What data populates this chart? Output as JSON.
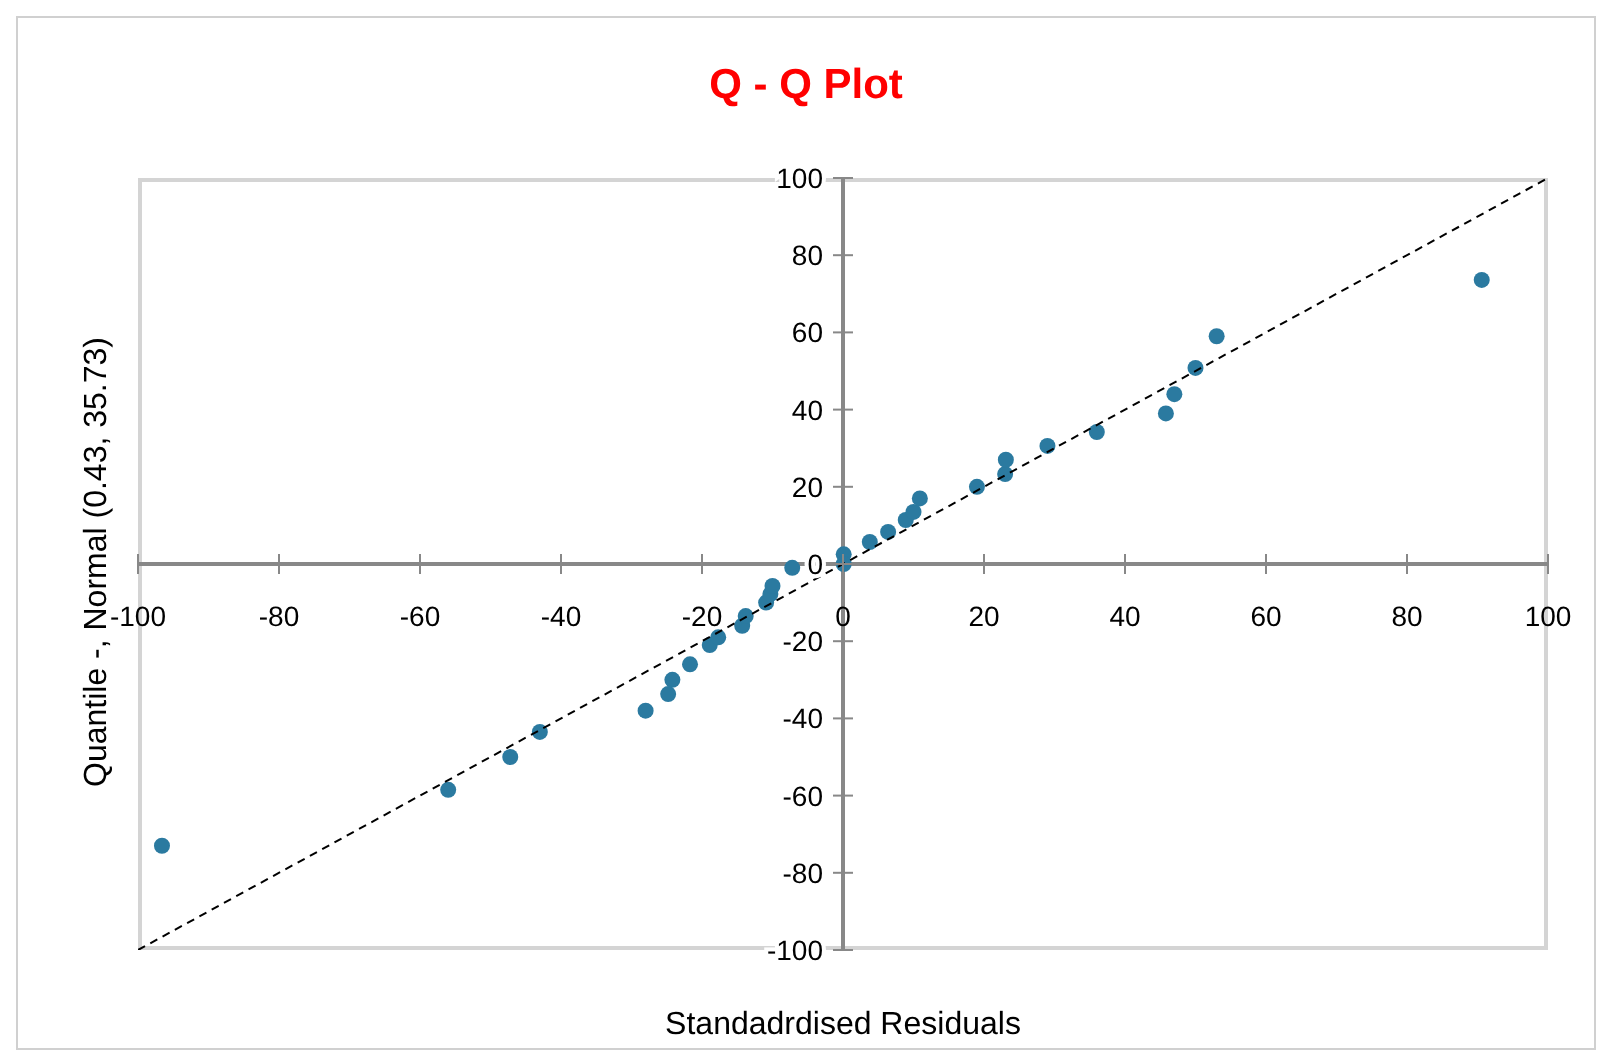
{
  "chart_data": {
    "type": "scatter",
    "title": "Q - Q Plot",
    "xlabel": "Standadrdised Residuals",
    "ylabel": "Quantile -, Normal (0.43, 35.73)",
    "xlim": [
      -100,
      100
    ],
    "ylim": [
      -100,
      100
    ],
    "xticks": [
      -100,
      -80,
      -60,
      -40,
      -20,
      0,
      20,
      40,
      60,
      80,
      100
    ],
    "yticks": [
      -100,
      -80,
      -60,
      -40,
      -20,
      0,
      20,
      40,
      60,
      80,
      100
    ],
    "marker": "circle",
    "series": [
      {
        "color": "#2b7aa0",
        "x": [
          -96.6,
          -56,
          -47.2,
          -43,
          -28,
          -24.8,
          -24.2,
          -21.7,
          -18.9,
          -17.7,
          -14.3,
          -13.8,
          -10.9,
          -10.3,
          -10,
          -7.2,
          0.1,
          0.1,
          3.8,
          6.4,
          8.9,
          10,
          10.9,
          19,
          23,
          23.1,
          29,
          36,
          45.8,
          47,
          50,
          53,
          90.6
        ],
        "values": [
          -73,
          -58.5,
          -50,
          -43.5,
          -38,
          -33.7,
          -30,
          -26,
          -21,
          -19,
          -16,
          -13.5,
          -10,
          -7.8,
          -5.7,
          -1,
          2.5,
          0,
          5.7,
          8.3,
          11.4,
          13.5,
          17,
          20,
          23.3,
          27,
          30.6,
          34.2,
          39,
          44,
          50.8,
          59,
          73.6
        ]
      },
      {
        "type": "line",
        "color": "#000000",
        "line_style": "dashed",
        "marker": "none",
        "x": [
          -100,
          100
        ],
        "values": [
          -100,
          100
        ]
      }
    ]
  }
}
